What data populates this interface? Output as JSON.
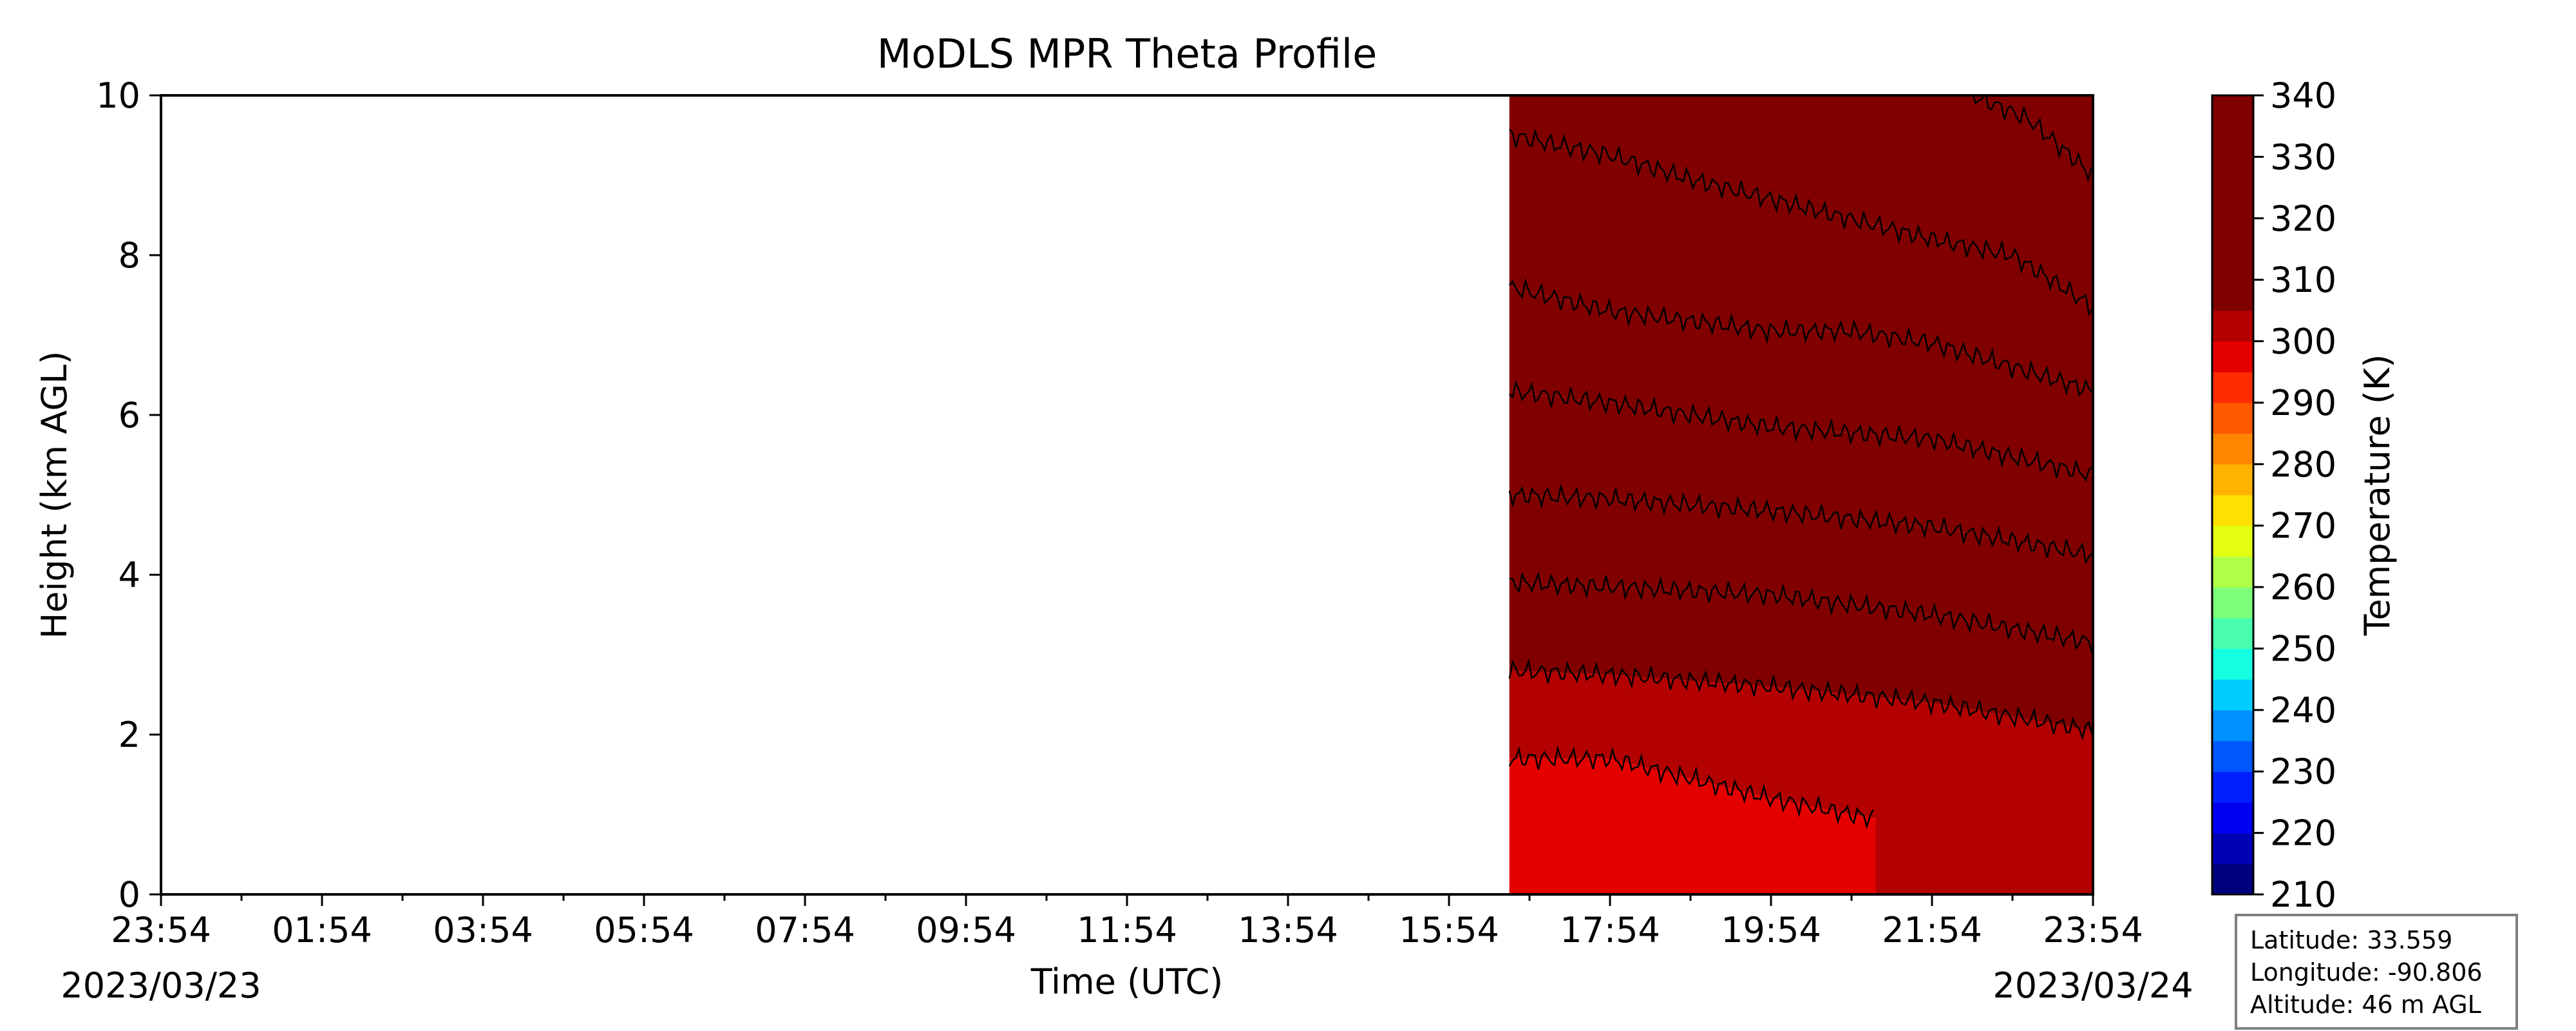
{
  "chart_data": {
    "type": "heatmap",
    "title": "MoDLS MPR Theta Profile",
    "xlabel": "Time (UTC)",
    "ylabel": "Height (km AGL)",
    "x_tick_labels": [
      "23:54",
      "01:54",
      "03:54",
      "05:54",
      "07:54",
      "09:54",
      "11:54",
      "13:54",
      "15:54",
      "17:54",
      "19:54",
      "21:54",
      "23:54"
    ],
    "x_range_hours": [
      0,
      24
    ],
    "date_start": "2023/03/23",
    "date_end": "2023/03/24",
    "ylim": [
      0,
      10
    ],
    "y_ticks": [
      0,
      2,
      4,
      6,
      8,
      10
    ],
    "data_start_hour": 16.75,
    "data_end_hour": 24,
    "colorbar": {
      "label": "Temperature (K)",
      "min": 210,
      "max": 340,
      "step": 5,
      "tick_values": [
        210,
        220,
        230,
        240,
        250,
        260,
        270,
        280,
        290,
        300,
        310,
        320,
        330,
        340
      ],
      "colors": [
        "#00007f",
        "#0000b7",
        "#0000f1",
        "#0020ff",
        "#0058ff",
        "#0090ff",
        "#00ccff",
        "#16ffe1",
        "#49ffad",
        "#7dff7a",
        "#b0ff46",
        "#e4ff13",
        "#ffe000",
        "#ffb300",
        "#ff8600",
        "#ff5900",
        "#ff2c00",
        "#e50000",
        "#b30000",
        "#800000",
        "#800000",
        "#800000",
        "#800000",
        "#800000",
        "#800000",
        "#800000"
      ]
    },
    "contour_levels_K": [
      300,
      305,
      310,
      315,
      320,
      325,
      330,
      335
    ],
    "contours": [
      {
        "level": 300,
        "points": [
          [
            16.75,
            1.7
          ],
          [
            18.0,
            1.7
          ],
          [
            19.0,
            1.45
          ],
          [
            20.0,
            1.2
          ],
          [
            21.0,
            1.0
          ],
          [
            21.3,
            0.95
          ]
        ]
      },
      {
        "level": 305,
        "points": [
          [
            16.75,
            2.8
          ],
          [
            18.0,
            2.75
          ],
          [
            20.0,
            2.6
          ],
          [
            22.0,
            2.4
          ],
          [
            24.0,
            2.05
          ]
        ]
      },
      {
        "level": 310,
        "points": [
          [
            16.75,
            3.9
          ],
          [
            18.0,
            3.85
          ],
          [
            20.0,
            3.75
          ],
          [
            22.0,
            3.5
          ],
          [
            24.0,
            3.15
          ]
        ]
      },
      {
        "level": 315,
        "points": [
          [
            16.75,
            5.0
          ],
          [
            18.0,
            4.95
          ],
          [
            20.0,
            4.8
          ],
          [
            22.0,
            4.6
          ],
          [
            24.0,
            4.25
          ]
        ]
      },
      {
        "level": 320,
        "points": [
          [
            16.75,
            6.3
          ],
          [
            18.0,
            6.15
          ],
          [
            20.0,
            5.85
          ],
          [
            22.0,
            5.7
          ],
          [
            24.0,
            5.25
          ]
        ]
      },
      {
        "level": 325,
        "points": [
          [
            16.75,
            7.6
          ],
          [
            18.0,
            7.3
          ],
          [
            20.0,
            7.05
          ],
          [
            21.0,
            7.05
          ],
          [
            22.0,
            6.9
          ],
          [
            24.0,
            6.3
          ]
        ]
      },
      {
        "level": 330,
        "points": [
          [
            16.75,
            9.5
          ],
          [
            18.0,
            9.25
          ],
          [
            19.0,
            8.95
          ],
          [
            20.0,
            8.7
          ],
          [
            22.0,
            8.2
          ],
          [
            23.0,
            8.0
          ],
          [
            24.0,
            7.35
          ]
        ]
      },
      {
        "level": 335,
        "points": [
          [
            22.5,
            10.0
          ],
          [
            23.2,
            9.7
          ],
          [
            24.0,
            9.0
          ]
        ]
      }
    ]
  },
  "info": {
    "latitude": "Latitude: 33.559",
    "longitude": "Longitude: -90.806",
    "altitude": "Altitude: 46 m AGL"
  }
}
